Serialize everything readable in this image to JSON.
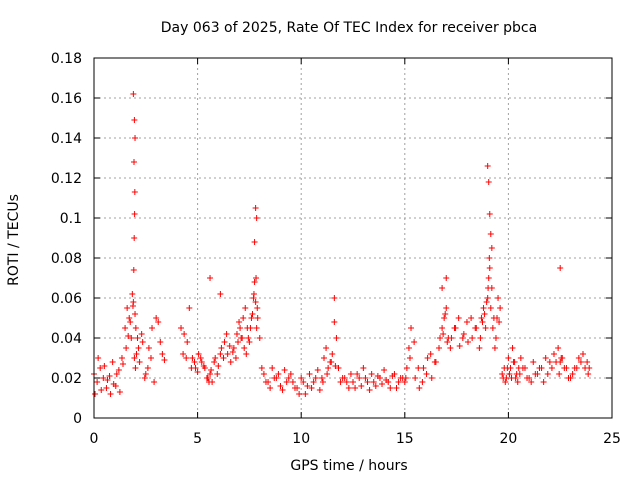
{
  "chart_data": {
    "type": "scatter",
    "title": "Day 063 of 2025, Rate Of TEC Index for receiver pbca",
    "xlabel": "GPS time / hours",
    "ylabel": "ROTI / TECUs",
    "xlim": [
      0,
      25
    ],
    "ylim": [
      0,
      0.18
    ],
    "x_ticks": [
      0,
      5,
      10,
      15,
      20,
      25
    ],
    "x_tick_labels": [
      "0",
      "5",
      "10",
      "15",
      "20",
      "25"
    ],
    "y_ticks": [
      0,
      0.02,
      0.04,
      0.06,
      0.08,
      0.1,
      0.12,
      0.14,
      0.16,
      0.18
    ],
    "y_tick_labels": [
      "0",
      "0.02",
      "0.04",
      "0.06",
      "0.08",
      "0.1",
      "0.12",
      "0.14",
      "0.16",
      "0.18"
    ],
    "grid": true,
    "marker": "+",
    "marker_color": "#ff0000",
    "series": [
      {
        "x": [
          0.0,
          0.15,
          0.3,
          0.45,
          0.6,
          0.75,
          0.9,
          1.05,
          1.2,
          1.35,
          1.5,
          1.6,
          1.7,
          1.8,
          1.85,
          1.9,
          1.95,
          2.0,
          2.05,
          2.1,
          2.2,
          2.35,
          2.5,
          2.65,
          2.8,
          3.0,
          3.2,
          3.4,
          0.05,
          0.2,
          0.35,
          0.5,
          0.65,
          0.8,
          0.95,
          1.1,
          1.25,
          1.4,
          1.55,
          1.65,
          1.75,
          1.88,
          1.92,
          1.98,
          2.02,
          2.15,
          2.3,
          2.45,
          2.6,
          2.75,
          2.9,
          3.1,
          3.3,
          4.2,
          4.35,
          4.5,
          4.6,
          4.75,
          4.9,
          5.05,
          5.2,
          5.35,
          5.5,
          5.6,
          5.7,
          5.85,
          6.0,
          6.15,
          6.3,
          6.45,
          6.6,
          6.75,
          6.9,
          7.0,
          7.1,
          7.2,
          7.3,
          7.4,
          7.5,
          7.6,
          7.7,
          7.75,
          7.8,
          7.85,
          7.9,
          8.0,
          8.1,
          4.3,
          4.45,
          4.7,
          4.85,
          5.0,
          5.15,
          5.3,
          5.45,
          5.55,
          5.65,
          5.8,
          5.95,
          6.1,
          6.25,
          6.4,
          6.55,
          6.7,
          6.85,
          6.95,
          7.05,
          7.15,
          7.25,
          7.35,
          7.45,
          7.55,
          7.65,
          7.72,
          7.82,
          7.88,
          8.2,
          8.4,
          8.6,
          8.8,
          9.0,
          9.2,
          9.4,
          9.6,
          9.8,
          10.0,
          10.2,
          10.4,
          10.6,
          10.8,
          11.0,
          11.1,
          11.2,
          11.3,
          11.4,
          11.5,
          11.6,
          11.7,
          11.8,
          12.0,
          12.2,
          12.4,
          12.6,
          12.8,
          13.0,
          13.2,
          13.4,
          13.6,
          13.8,
          14.0,
          14.2,
          14.4,
          14.6,
          14.8,
          8.3,
          8.5,
          8.7,
          8.9,
          9.1,
          9.3,
          9.5,
          9.7,
          9.9,
          10.1,
          10.3,
          10.5,
          10.7,
          10.9,
          11.05,
          11.25,
          11.45,
          11.65,
          11.9,
          12.1,
          12.3,
          12.5,
          12.7,
          12.9,
          13.1,
          13.3,
          13.5,
          13.7,
          13.9,
          14.1,
          14.3,
          14.5,
          14.7,
          14.9,
          15.0,
          15.1,
          15.2,
          15.3,
          15.5,
          15.7,
          15.9,
          16.1,
          16.3,
          16.5,
          16.7,
          16.8,
          16.9,
          17.0,
          17.1,
          17.2,
          17.4,
          17.6,
          17.8,
          18.0,
          18.2,
          18.4,
          18.6,
          18.7,
          18.8,
          18.9,
          19.0,
          19.05,
          19.1,
          19.2,
          19.3,
          19.4,
          19.5,
          19.6,
          15.05,
          15.25,
          15.45,
          15.65,
          15.85,
          16.05,
          16.25,
          16.45,
          16.65,
          16.85,
          16.95,
          17.05,
          17.25,
          17.45,
          17.65,
          17.85,
          18.05,
          18.25,
          18.45,
          18.65,
          18.75,
          18.85,
          18.95,
          19.02,
          19.08,
          19.15,
          19.25,
          19.35,
          19.45,
          19.55,
          19.7,
          19.8,
          19.9,
          20.0,
          20.1,
          20.2,
          20.3,
          20.4,
          20.5,
          20.6,
          20.8,
          21.0,
          21.2,
          21.4,
          21.6,
          21.8,
          22.0,
          22.2,
          22.4,
          22.5,
          22.6,
          22.8,
          23.0,
          23.2,
          23.4,
          23.6,
          23.8,
          23.9,
          19.75,
          19.85,
          19.95,
          20.05,
          20.15,
          20.25,
          20.35,
          20.45,
          20.55,
          20.7,
          20.9,
          21.1,
          21.3,
          21.5,
          21.7,
          21.9,
          22.1,
          22.3,
          22.45,
          22.55,
          22.7,
          22.9,
          23.1,
          23.3,
          23.5,
          23.7,
          23.85,
          1.9,
          1.95,
          1.93,
          1.97,
          1.96,
          1.94,
          1.98,
          7.8,
          7.85,
          7.75,
          19.0,
          19.05,
          19.1,
          19.15,
          19.2,
          5.6,
          6.1,
          11.6,
          22.5,
          17.0,
          16.8
        ],
        "y": [
          0.022,
          0.018,
          0.025,
          0.02,
          0.015,
          0.021,
          0.028,
          0.016,
          0.024,
          0.03,
          0.045,
          0.055,
          0.05,
          0.04,
          0.062,
          0.058,
          0.03,
          0.025,
          0.032,
          0.04,
          0.028,
          0.038,
          0.022,
          0.035,
          0.045,
          0.05,
          0.038,
          0.029,
          0.012,
          0.03,
          0.014,
          0.026,
          0.019,
          0.012,
          0.017,
          0.022,
          0.013,
          0.027,
          0.035,
          0.041,
          0.048,
          0.056,
          0.074,
          0.052,
          0.045,
          0.035,
          0.042,
          0.02,
          0.025,
          0.03,
          0.018,
          0.048,
          0.032,
          0.045,
          0.042,
          0.038,
          0.055,
          0.03,
          0.025,
          0.032,
          0.028,
          0.025,
          0.02,
          0.022,
          0.018,
          0.03,
          0.026,
          0.035,
          0.038,
          0.032,
          0.028,
          0.035,
          0.042,
          0.048,
          0.04,
          0.05,
          0.055,
          0.045,
          0.038,
          0.05,
          0.06,
          0.068,
          0.058,
          0.045,
          0.05,
          0.04,
          0.025,
          0.032,
          0.03,
          0.025,
          0.028,
          0.023,
          0.03,
          0.026,
          0.02,
          0.018,
          0.024,
          0.028,
          0.022,
          0.032,
          0.03,
          0.042,
          0.036,
          0.033,
          0.03,
          0.038,
          0.045,
          0.04,
          0.035,
          0.032,
          0.04,
          0.045,
          0.052,
          0.062,
          0.07,
          0.055,
          0.022,
          0.018,
          0.025,
          0.02,
          0.016,
          0.024,
          0.02,
          0.018,
          0.015,
          0.02,
          0.012,
          0.022,
          0.018,
          0.024,
          0.02,
          0.03,
          0.035,
          0.025,
          0.028,
          0.032,
          0.048,
          0.04,
          0.025,
          0.02,
          0.018,
          0.022,
          0.015,
          0.02,
          0.025,
          0.018,
          0.022,
          0.016,
          0.02,
          0.024,
          0.018,
          0.021,
          0.015,
          0.02,
          0.018,
          0.015,
          0.02,
          0.022,
          0.014,
          0.018,
          0.022,
          0.015,
          0.012,
          0.018,
          0.016,
          0.015,
          0.02,
          0.014,
          0.018,
          0.022,
          0.028,
          0.026,
          0.018,
          0.02,
          0.015,
          0.018,
          0.022,
          0.016,
          0.02,
          0.014,
          0.018,
          0.021,
          0.017,
          0.019,
          0.015,
          0.022,
          0.018,
          0.02,
          0.018,
          0.025,
          0.035,
          0.045,
          0.02,
          0.015,
          0.025,
          0.03,
          0.02,
          0.028,
          0.04,
          0.045,
          0.05,
          0.055,
          0.04,
          0.035,
          0.045,
          0.05,
          0.04,
          0.048,
          0.05,
          0.045,
          0.035,
          0.05,
          0.055,
          0.045,
          0.06,
          0.07,
          0.075,
          0.065,
          0.05,
          0.04,
          0.06,
          0.055,
          0.02,
          0.03,
          0.038,
          0.025,
          0.018,
          0.022,
          0.032,
          0.028,
          0.035,
          0.042,
          0.052,
          0.038,
          0.04,
          0.045,
          0.036,
          0.042,
          0.038,
          0.04,
          0.045,
          0.04,
          0.048,
          0.052,
          0.058,
          0.065,
          0.08,
          0.055,
          0.045,
          0.035,
          0.05,
          0.048,
          0.022,
          0.025,
          0.02,
          0.03,
          0.025,
          0.035,
          0.028,
          0.022,
          0.025,
          0.03,
          0.025,
          0.02,
          0.028,
          0.022,
          0.025,
          0.03,
          0.028,
          0.032,
          0.035,
          0.028,
          0.03,
          0.025,
          0.02,
          0.025,
          0.03,
          0.032,
          0.028,
          0.025,
          0.02,
          0.018,
          0.025,
          0.022,
          0.02,
          0.028,
          0.02,
          0.018,
          0.022,
          0.025,
          0.02,
          0.018,
          0.022,
          0.025,
          0.018,
          0.022,
          0.025,
          0.028,
          0.022,
          0.03,
          0.025,
          0.02,
          0.022,
          0.025,
          0.028,
          0.025,
          0.022,
          0.162,
          0.149,
          0.128,
          0.113,
          0.102,
          0.09,
          0.14,
          0.105,
          0.1,
          0.088,
          0.126,
          0.118,
          0.102,
          0.092,
          0.085,
          0.07,
          0.062,
          0.06,
          0.075,
          0.07,
          0.065
        ]
      }
    ]
  }
}
